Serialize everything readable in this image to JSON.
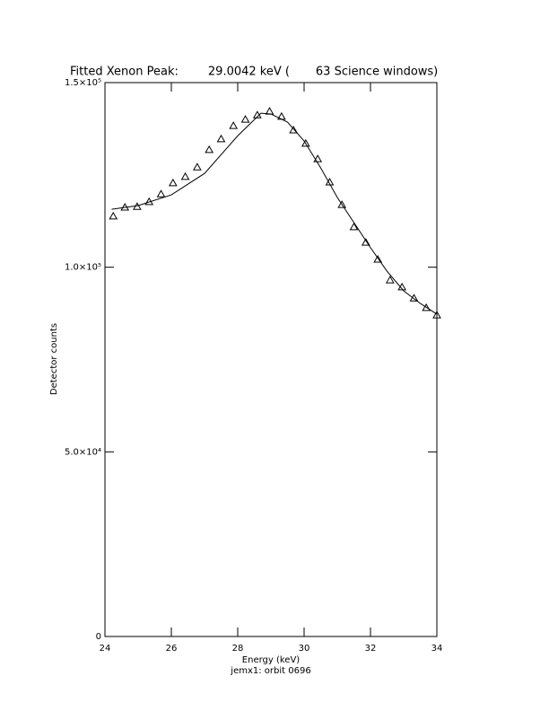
{
  "chart_data": {
    "type": "scatter",
    "title": "Fitted Xenon Peak:        29.0042 keV (       63 Science windows)",
    "x_label": "Energy (keV)",
    "y_label": "Detector counts",
    "subtitle": "jemx1: orbit 0696",
    "xlim": [
      24,
      34
    ],
    "xticks": [
      24,
      26,
      28,
      30,
      32,
      34
    ],
    "ylim": [
      0,
      150000
    ],
    "yticks": [
      0,
      {
        "value": 50000,
        "label": "5.0×10⁴"
      },
      {
        "value": 100000,
        "label": "1.0×10⁵"
      },
      {
        "value": 150000,
        "label": "1.5×10⁵"
      }
    ],
    "color": "#000000",
    "points": {
      "x": [
        24.25,
        24.6,
        24.97,
        25.33,
        25.69,
        26.05,
        26.42,
        26.78,
        27.14,
        27.5,
        27.87,
        28.23,
        28.59,
        28.96,
        29.32,
        29.68,
        30.05,
        30.41,
        30.77,
        31.14,
        31.5,
        31.86,
        32.22,
        32.59,
        32.95,
        33.31,
        33.68,
        34.0
      ],
      "values": [
        113800,
        116200,
        116400,
        117700,
        119800,
        122800,
        124500,
        127100,
        131800,
        134700,
        138300,
        140000,
        141200,
        142200,
        140800,
        137100,
        133500,
        129300,
        123000,
        116900,
        110900,
        106700,
        102100,
        96500,
        94600,
        91600,
        89000,
        87000
      ]
    },
    "fit": {
      "x": [
        24.2,
        25,
        26,
        27,
        28,
        28.7,
        29,
        29.5,
        30,
        30.5,
        31,
        31.5,
        32,
        32.5,
        33,
        33.5,
        34
      ],
      "values": [
        115700,
        116700,
        119600,
        125400,
        135600,
        141700,
        141500,
        139300,
        134200,
        126900,
        118900,
        112100,
        105300,
        98900,
        93600,
        90200,
        87300
      ]
    }
  }
}
